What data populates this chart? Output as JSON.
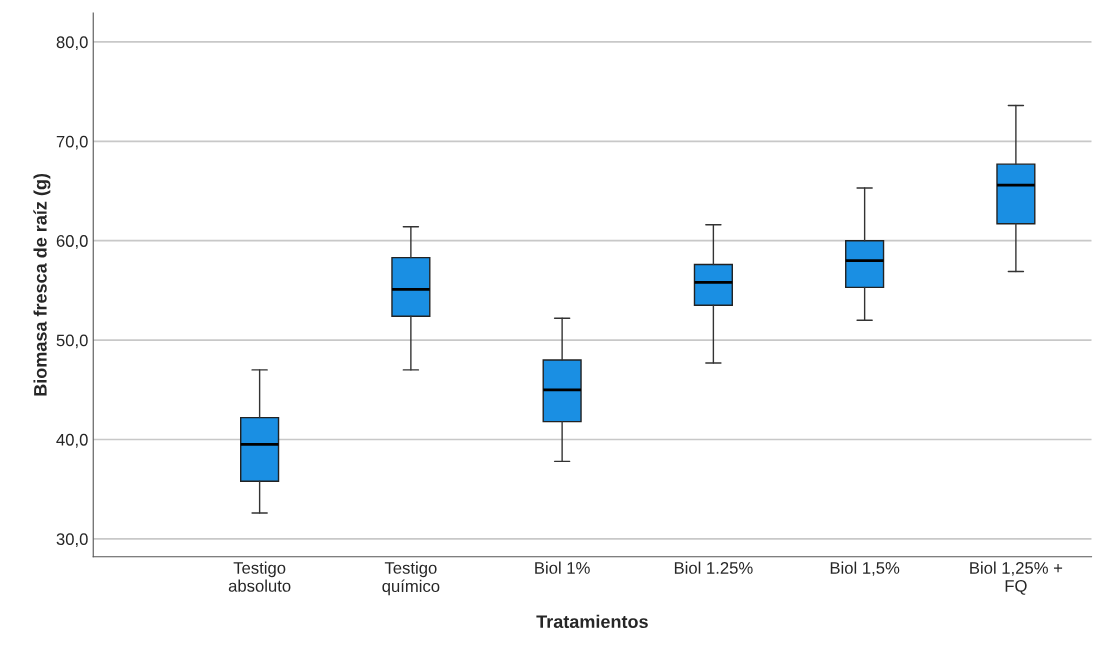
{
  "chart_data": {
    "type": "box",
    "xlabel": "Tratamientos",
    "ylabel": "Biomasa fresca de raíz (g)",
    "categories": [
      "Testigo\nabsoluto",
      "Testigo\nquímico",
      "Biol 1%",
      "Biol 1.25%",
      "Biol 1,5%",
      "Biol 1,25% +\nFQ"
    ],
    "boxes": [
      {
        "low": 32.6,
        "q1": 35.8,
        "median": 39.5,
        "q3": 42.2,
        "high": 47.0
      },
      {
        "low": 47.0,
        "q1": 52.4,
        "median": 55.1,
        "q3": 58.3,
        "high": 61.4
      },
      {
        "low": 37.8,
        "q1": 41.8,
        "median": 45.0,
        "q3": 48.0,
        "high": 52.2
      },
      {
        "low": 47.7,
        "q1": 53.5,
        "median": 55.8,
        "q3": 57.6,
        "high": 61.6
      },
      {
        "low": 52.0,
        "q1": 55.3,
        "median": 58.0,
        "q3": 60.0,
        "high": 65.3
      },
      {
        "low": 56.9,
        "q1": 61.7,
        "median": 65.6,
        "q3": 67.7,
        "high": 73.6
      }
    ],
    "color": "#1a8fe3",
    "ylim": [
      28.2,
      82.9
    ],
    "yticks": [
      {
        "value": 30,
        "label": "30,0"
      },
      {
        "value": 40,
        "label": "40,0"
      },
      {
        "value": 50,
        "label": "50,0"
      },
      {
        "value": 60,
        "label": "60,0"
      },
      {
        "value": 70,
        "label": "70,0"
      },
      {
        "value": 80,
        "label": "80,0"
      }
    ],
    "grid": "y"
  }
}
